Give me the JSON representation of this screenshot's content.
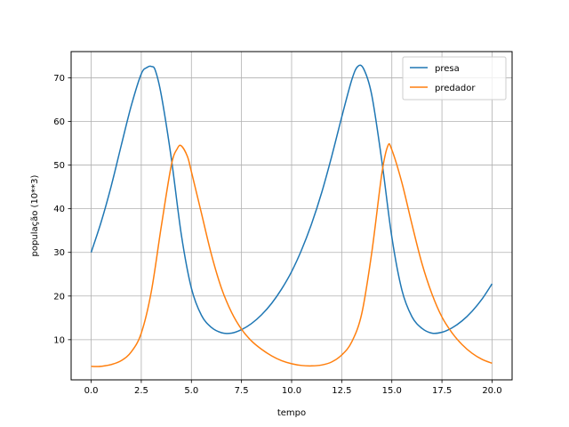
{
  "chart_data": {
    "type": "line",
    "title": "",
    "xlabel": "tempo",
    "ylabel": "população (10**3)",
    "xlim": [
      -1.0,
      21.0
    ],
    "ylim": [
      0.8,
      76.0
    ],
    "xticks": [
      0.0,
      2.5,
      5.0,
      7.5,
      10.0,
      12.5,
      15.0,
      17.5,
      20.0
    ],
    "xtick_labels": [
      "0.0",
      "2.5",
      "5.0",
      "7.5",
      "10.0",
      "12.5",
      "15.0",
      "17.5",
      "20.0"
    ],
    "yticks": [
      10,
      20,
      30,
      40,
      50,
      60,
      70
    ],
    "ytick_labels": [
      "10",
      "20",
      "30",
      "40",
      "50",
      "60",
      "70"
    ],
    "grid": true,
    "legend_position": "top-right",
    "series": [
      {
        "name": "presa",
        "color": "#1f77b4",
        "x": [
          0.0,
          0.5,
          1.0,
          1.5,
          2.0,
          2.5,
          2.8,
          3.0,
          3.2,
          3.5,
          4.0,
          4.5,
          5.0,
          5.5,
          6.0,
          6.5,
          7.0,
          7.5,
          8.0,
          8.5,
          9.0,
          9.5,
          10.0,
          10.5,
          11.0,
          11.5,
          12.0,
          12.5,
          13.0,
          13.3,
          13.6,
          14.0,
          14.5,
          15.0,
          15.5,
          16.0,
          16.5,
          17.0,
          17.5,
          18.0,
          18.5,
          19.0,
          19.5,
          20.0
        ],
        "y": [
          30.0,
          37.0,
          45.2,
          54.5,
          63.6,
          70.9,
          72.4,
          72.6,
          71.7,
          66.0,
          51.5,
          34.0,
          21.8,
          15.6,
          12.8,
          11.6,
          11.5,
          12.3,
          13.7,
          15.7,
          18.3,
          21.6,
          25.6,
          30.6,
          36.6,
          43.7,
          52.0,
          61.0,
          69.5,
          72.6,
          72.0,
          66.0,
          51.0,
          33.5,
          21.4,
          15.3,
          12.6,
          11.5,
          11.7,
          12.7,
          14.3,
          16.5,
          19.3,
          22.8
        ]
      },
      {
        "name": "predador",
        "color": "#ff7f0e",
        "x": [
          0.0,
          0.3,
          0.5,
          1.0,
          1.5,
          2.0,
          2.5,
          3.0,
          3.5,
          4.0,
          4.3,
          4.5,
          4.8,
          5.0,
          5.5,
          6.0,
          6.5,
          7.0,
          7.5,
          8.0,
          8.5,
          9.0,
          9.5,
          10.0,
          10.5,
          11.0,
          11.5,
          12.0,
          12.5,
          13.0,
          13.5,
          14.0,
          14.5,
          14.8,
          15.0,
          15.5,
          16.0,
          16.5,
          17.0,
          17.5,
          18.0,
          18.5,
          19.0,
          19.5,
          20.0
        ],
        "y": [
          3.9,
          3.85,
          3.9,
          4.3,
          5.2,
          7.2,
          11.5,
          21.0,
          36.0,
          50.0,
          53.8,
          54.4,
          52.0,
          48.5,
          39.0,
          29.5,
          21.8,
          16.3,
          12.4,
          9.7,
          7.8,
          6.3,
          5.2,
          4.5,
          4.1,
          4.0,
          4.2,
          4.9,
          6.5,
          9.5,
          16.0,
          30.0,
          48.0,
          54.4,
          53.5,
          46.0,
          36.5,
          27.5,
          20.5,
          15.2,
          11.6,
          8.9,
          6.9,
          5.5,
          4.6
        ]
      }
    ]
  }
}
